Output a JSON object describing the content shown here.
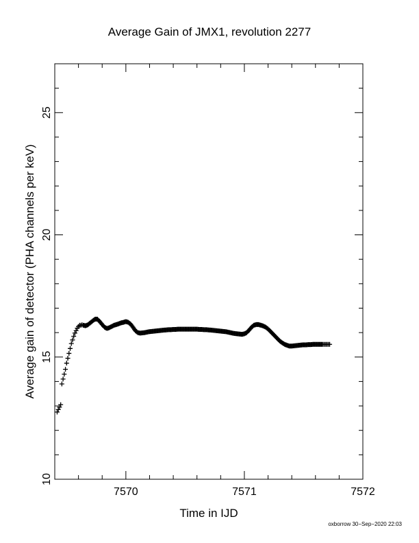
{
  "chart_data": {
    "type": "scatter",
    "title": "Average Gain of JMX1, revolution 2277",
    "xlabel": "Time in IJD",
    "ylabel": "Average gain of detector (PHA channels per keV)",
    "xlim": [
      7569.4,
      7572.0
    ],
    "ylim": [
      10,
      27
    ],
    "x_ticks": [
      "7570",
      "7571",
      "7572"
    ],
    "y_ticks": [
      "10",
      "15",
      "20",
      "25"
    ],
    "x_minor_step": 0.2,
    "y_minor_step": 1,
    "grid": false,
    "marker": "plus",
    "marker_color": "#000000",
    "series": [
      {
        "x": [
          7569.42,
          7569.43,
          7569.44,
          7569.45,
          7569.46,
          7569.47,
          7569.48,
          7569.49,
          7569.5,
          7569.51,
          7569.52,
          7569.53,
          7569.54,
          7569.55,
          7569.56,
          7569.57,
          7569.58,
          7569.59,
          7569.6,
          7569.61,
          7569.62,
          7569.63,
          7569.64,
          7569.66,
          7569.68,
          7569.7,
          7569.72,
          7569.74,
          7569.76,
          7569.78,
          7569.8,
          7569.82,
          7569.84,
          7569.86,
          7569.88,
          7569.9,
          7569.92,
          7569.94,
          7569.96,
          7569.98,
          7570.0,
          7570.02,
          7570.04,
          7570.06,
          7570.08,
          7570.1,
          7570.12,
          7570.14,
          7570.16,
          7570.18,
          7570.2,
          7570.22,
          7570.24,
          7570.26,
          7570.28,
          7570.3,
          7570.32,
          7570.34,
          7570.36,
          7570.38,
          7570.4,
          7570.42,
          7570.44,
          7570.46,
          7570.48,
          7570.5,
          7570.52,
          7570.54,
          7570.56,
          7570.58,
          7570.6,
          7570.62,
          7570.64,
          7570.66,
          7570.68,
          7570.7,
          7570.72,
          7570.74,
          7570.76,
          7570.78,
          7570.8,
          7570.82,
          7570.84,
          7570.86,
          7570.88,
          7570.9,
          7570.92,
          7570.94,
          7570.96,
          7570.98,
          7571.0,
          7571.02,
          7571.04,
          7571.06,
          7571.08,
          7571.1,
          7571.12,
          7571.14,
          7571.16,
          7571.18,
          7571.2,
          7571.22,
          7571.24,
          7571.26,
          7571.28,
          7571.3,
          7571.32,
          7571.34,
          7571.36,
          7571.38,
          7571.4,
          7571.42,
          7571.44,
          7571.46,
          7571.48,
          7571.5,
          7571.52,
          7571.54,
          7571.56,
          7571.58,
          7571.6,
          7571.62,
          7571.64,
          7571.66,
          7571.67,
          7571.68,
          7571.69,
          7571.7,
          7571.71,
          7571.72
        ],
        "y": [
          12.75,
          12.85,
          12.95,
          13.05,
          13.9,
          14.1,
          14.3,
          14.5,
          14.75,
          14.95,
          15.15,
          15.35,
          15.55,
          15.7,
          15.85,
          15.98,
          16.08,
          16.18,
          16.25,
          16.3,
          16.3,
          16.32,
          16.3,
          16.28,
          16.32,
          16.4,
          16.48,
          16.55,
          16.55,
          16.45,
          16.33,
          16.22,
          16.17,
          16.2,
          16.25,
          16.3,
          16.33,
          16.36,
          16.4,
          16.42,
          16.45,
          16.42,
          16.35,
          16.22,
          16.08,
          16.0,
          15.98,
          15.99,
          16.0,
          16.02,
          16.04,
          16.05,
          16.06,
          16.07,
          16.08,
          16.09,
          16.1,
          16.11,
          16.12,
          16.12,
          16.13,
          16.13,
          16.14,
          16.14,
          16.14,
          16.14,
          16.14,
          16.14,
          16.14,
          16.14,
          16.14,
          16.13,
          16.13,
          16.12,
          16.12,
          16.11,
          16.1,
          16.09,
          16.08,
          16.07,
          16.06,
          16.05,
          16.04,
          16.02,
          16.0,
          15.98,
          15.96,
          15.95,
          15.94,
          15.93,
          15.95,
          16.0,
          16.1,
          16.22,
          16.3,
          16.33,
          16.33,
          16.3,
          16.27,
          16.22,
          16.15,
          16.05,
          15.95,
          15.85,
          15.75,
          15.65,
          15.58,
          15.52,
          15.48,
          15.45,
          15.45,
          15.46,
          15.47,
          15.48,
          15.49,
          15.5,
          15.5,
          15.51,
          15.51,
          15.52,
          15.52,
          15.52,
          15.52,
          15.52,
          15.52,
          15.52,
          15.52,
          15.52,
          15.52,
          15.52
        ]
      }
    ]
  },
  "footer": "oxborrow 30−Sep−2020 22:03"
}
